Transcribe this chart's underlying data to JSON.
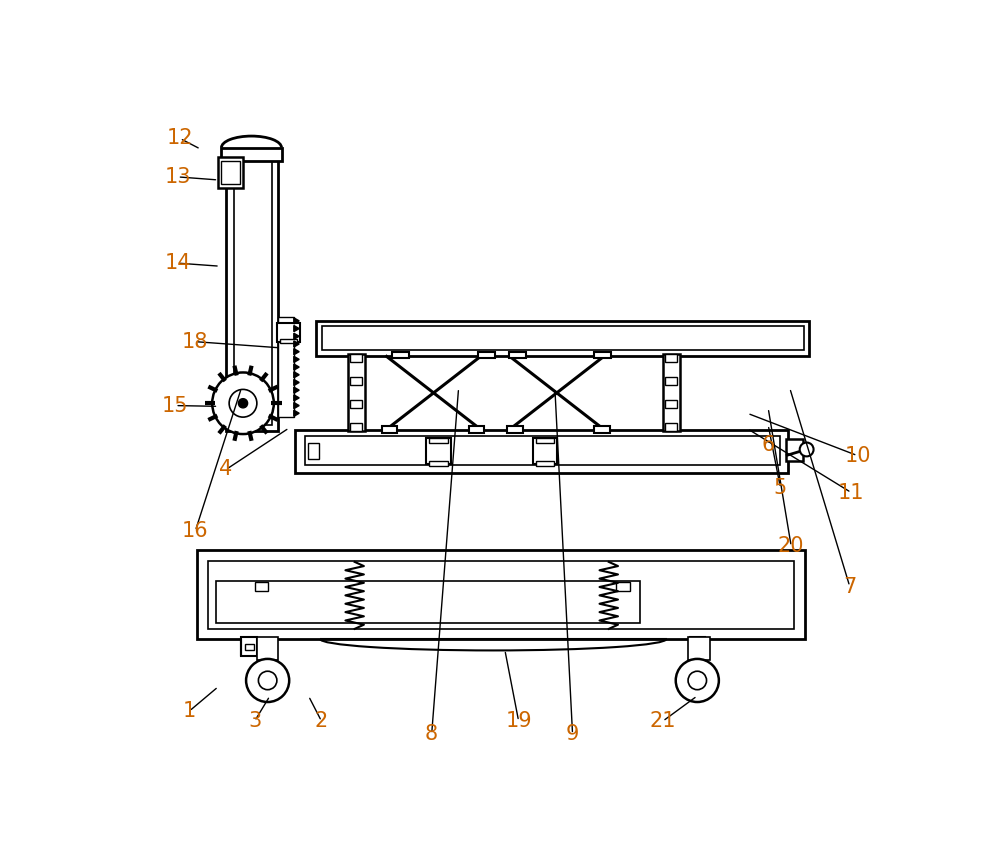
{
  "bg_color": "#ffffff",
  "line_color": "#000000",
  "label_color": "#cc6600",
  "fig_width": 10.0,
  "fig_height": 8.58,
  "dpi": 100,
  "labels": [
    [
      "12",
      68,
      812,
      95,
      798
    ],
    [
      "13",
      65,
      762,
      118,
      758
    ],
    [
      "14",
      65,
      650,
      120,
      646
    ],
    [
      "18",
      88,
      548,
      198,
      540
    ],
    [
      "15",
      62,
      465,
      118,
      464
    ],
    [
      "4",
      128,
      382,
      210,
      436
    ],
    [
      "16",
      88,
      302,
      148,
      488
    ],
    [
      "1",
      80,
      68,
      118,
      100
    ],
    [
      "3",
      165,
      55,
      185,
      88
    ],
    [
      "2",
      252,
      55,
      235,
      88
    ],
    [
      "19",
      508,
      55,
      490,
      148
    ],
    [
      "21",
      695,
      55,
      740,
      88
    ],
    [
      "20",
      862,
      282,
      832,
      462
    ],
    [
      "5",
      848,
      358,
      832,
      440
    ],
    [
      "6",
      832,
      414,
      832,
      422
    ],
    [
      "10",
      948,
      400,
      805,
      455
    ],
    [
      "11",
      940,
      352,
      805,
      435
    ],
    [
      "7",
      938,
      230,
      860,
      488
    ],
    [
      "9",
      578,
      38,
      555,
      488
    ],
    [
      "8",
      395,
      38,
      430,
      488
    ]
  ]
}
